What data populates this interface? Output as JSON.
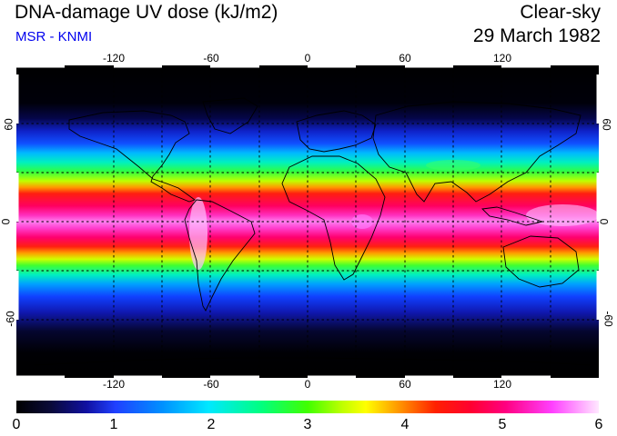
{
  "header": {
    "title": "DNA-damage UV dose (kJ/m2)",
    "subtitle": "MSR - KNMI",
    "sky_condition": "Clear-sky",
    "date": "29 March 1982"
  },
  "map": {
    "longitude_ticks_top": [
      "-120",
      "-60",
      "0",
      "60",
      "120"
    ],
    "longitude_ticks_bottom": [
      "-120",
      "-60",
      "0",
      "60",
      "120"
    ],
    "latitude_ticks_left": [
      "60",
      "0",
      "-60"
    ],
    "latitude_ticks_right": [
      "60",
      "0",
      "-60"
    ]
  },
  "colorbar": {
    "labels": [
      "0",
      "1",
      "2",
      "3",
      "4",
      "5",
      "6"
    ],
    "min": 0,
    "max": 6
  },
  "colors": {
    "subtitle": "#0000ee",
    "ocean_background": "#000000",
    "coastline": "#000000",
    "graticule": "#000000"
  }
}
